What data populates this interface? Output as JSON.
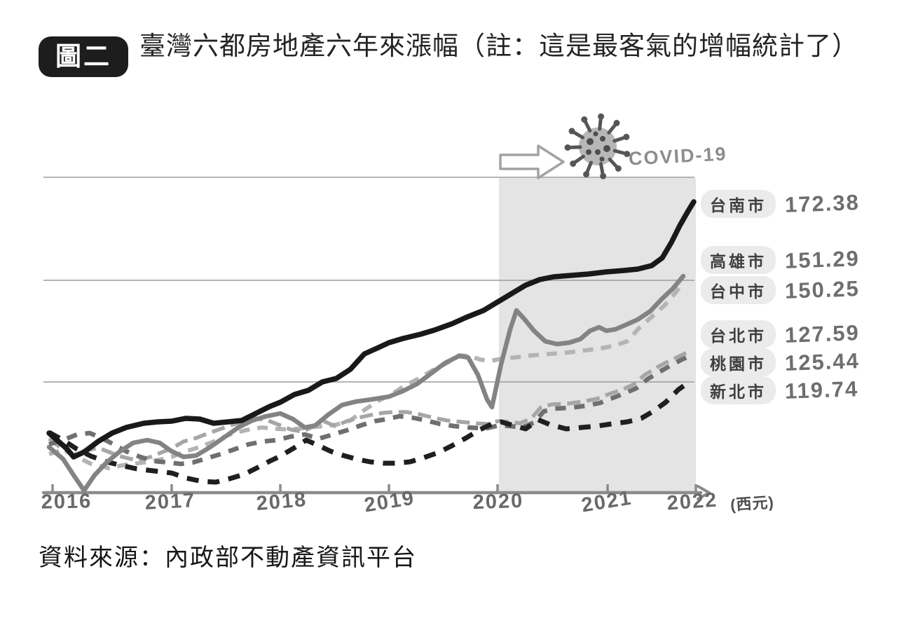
{
  "figure": {
    "badge": "圖二",
    "title": "臺灣六都房地產六年來漲幅（註：這是最客氣的增幅統計了）",
    "source": "資料來源：內政部不動產資訊平台",
    "covid_label": "COVID-19",
    "axis_unit": "(西元)"
  },
  "chart_data": {
    "type": "line",
    "title": "臺灣六都房地產六年來漲幅",
    "x": [
      2016,
      2017,
      2018,
      2019,
      2020,
      2021,
      2022
    ],
    "x_axis_unit_label": "(西元)",
    "y_axis": {
      "visible_labels": false,
      "range_est": [
        87,
        180
      ],
      "gridlines_est": [
        180,
        150,
        120
      ],
      "grid": true
    },
    "shaded_region": {
      "x_from": 2020,
      "x_to": 2022,
      "annotation": "COVID-19"
    },
    "legend_position": "right-of-line-ends",
    "series": [
      {
        "name": "台南市",
        "final_value": "172.38",
        "final_value_num": 172.38,
        "values_est": [
          104.9,
          108.4,
          114.0,
          131.6,
          143.6,
          152.5,
          172.38
        ],
        "style": "solid",
        "color": "#191919",
        "stroke_width": 7.5,
        "dash": "",
        "px_path": "70,618 95,640 105,652 120,645 140,630 160,618 180,610 205,604 225,602 245,601 265,597 285,598 305,604 325,602 345,600 365,590 385,580 400,574 420,563 440,557 460,545 480,540 500,527 520,505 540,496 555,489 575,483 600,477 620,471 645,462 665,453 690,443 710,431 730,419 750,407 770,399 790,395 815,393 840,391 865,388 890,386 910,384 930,379 945,368 958,346 970,322 982,301 990,288"
      },
      {
        "name": "高雄市",
        "final_value": "151.29",
        "final_value_num": 151.29,
        "values_est": [
          100.8,
          99.5,
          110.7,
          115.7,
          113.8,
          135.1,
          151.29
        ],
        "style": "solid",
        "color": "#838383",
        "stroke_width": 6.5,
        "dash": "",
        "px_path": "70,638 90,655 105,678 120,700 135,678 152,660 170,645 190,632 210,628 228,632 245,644 262,652 280,650 300,638 320,624 340,610 360,600 380,594 400,590 418,598 435,610 450,607 468,592 488,578 508,573 530,570 555,566 575,558 595,548 615,533 635,518 655,508 668,510 682,535 695,570 702,581 715,520 728,470 737,443 748,455 762,472 778,487 795,491 812,489 828,484 842,472 855,467 865,472 878,470 892,464 910,456 928,444 945,426 960,412 975,394"
      },
      {
        "name": "台中市",
        "final_value": "150.25",
        "final_value_num": 150.25,
        "values_est": [
          98.7,
          97.9,
          106.6,
          116.3,
          127.3,
          130.5,
          150.25
        ],
        "style": "dashed",
        "color": "#b4b4b4",
        "stroke_width": 6,
        "dash": "15 11",
        "px_path": "70,648 90,642 110,652 130,662 155,668 180,663 205,660 228,656 245,652 265,644 285,638 305,630 328,620 350,614 373,610 395,612 415,613 440,610 462,608 480,606 500,600 520,585 540,572 558,563 578,550 598,540 618,528 638,518 655,507 670,508 685,513 700,515 715,512 735,510 760,507 785,505 810,503 835,500 858,497 878,493 895,487 912,468 930,452 948,436 962,420 975,404"
      },
      {
        "name": "台北市",
        "final_value": "127.59",
        "final_value_num": 127.59,
        "values_est": [
          103.3,
          100.3,
          106.9,
          110.8,
          108.3,
          116.4,
          127.59
        ],
        "style": "dashed",
        "color": "#a6a6a6",
        "stroke_width": 5.5,
        "dash": "19 9",
        "px_path": "70,626 88,640 105,649 122,643 140,639 158,646 175,652 195,657 215,652 232,645 245,640 262,630 280,625 298,618 315,612 332,606 348,601 365,597 382,600 400,607 415,613 432,616 448,608 462,601 478,608 495,601 512,596 530,592 548,589 562,588 580,588 598,591 618,596 638,600 658,602 678,604 695,605 710,601 725,602 742,604 758,597 772,581 788,577 810,576 832,573 852,569 870,562 888,556 905,548 920,535 938,524 955,515 970,508 984,501"
      },
      {
        "name": "桃園市",
        "final_value": "125.44",
        "final_value_num": 125.44,
        "values_est": [
          101.6,
          96.6,
          102.8,
          109.0,
          107.0,
          115.2,
          125.44
        ],
        "style": "dashed",
        "color": "#6f6f6f",
        "stroke_width": 6.5,
        "dash": "15 12",
        "px_path": "70,634 90,628 110,620 128,618 145,625 162,634 180,644 200,652 220,658 240,660 258,662 275,660 295,654 315,648 335,641 355,634 375,630 395,628 415,623 435,620 455,626 475,620 495,614 515,607 535,601 552,598 570,594 588,596 608,600 628,605 648,608 668,610 688,611 695,611 712,607 728,608 745,610 762,603 776,587 792,583 814,582 836,579 856,575 874,568 892,561 908,554 924,541 942,530 958,521 973,513 988,507"
      },
      {
        "name": "新北市",
        "final_value": "119.74",
        "final_value_num": 119.74,
        "values_est": [
          105.1,
          93.1,
          98.1,
          96.0,
          108.0,
          108.3,
          119.74
        ],
        "style": "dashed",
        "color": "#1f1f1f",
        "stroke_width": 7,
        "dash": "17 13",
        "px_path": "70,617 90,628 110,641 130,651 152,659 172,664 195,669 220,672 245,675 265,682 288,687 308,688 328,683 348,677 368,667 385,658 400,651 420,639 437,628 455,636 472,644 490,650 508,655 528,659 548,661 565,661 585,659 605,653 625,646 645,636 665,625 685,613 702,605 715,602 732,607 750,612 768,599 785,606 808,612 830,610 852,608 872,605 895,602 915,597 932,587 950,574 968,556 985,544"
      }
    ]
  }
}
